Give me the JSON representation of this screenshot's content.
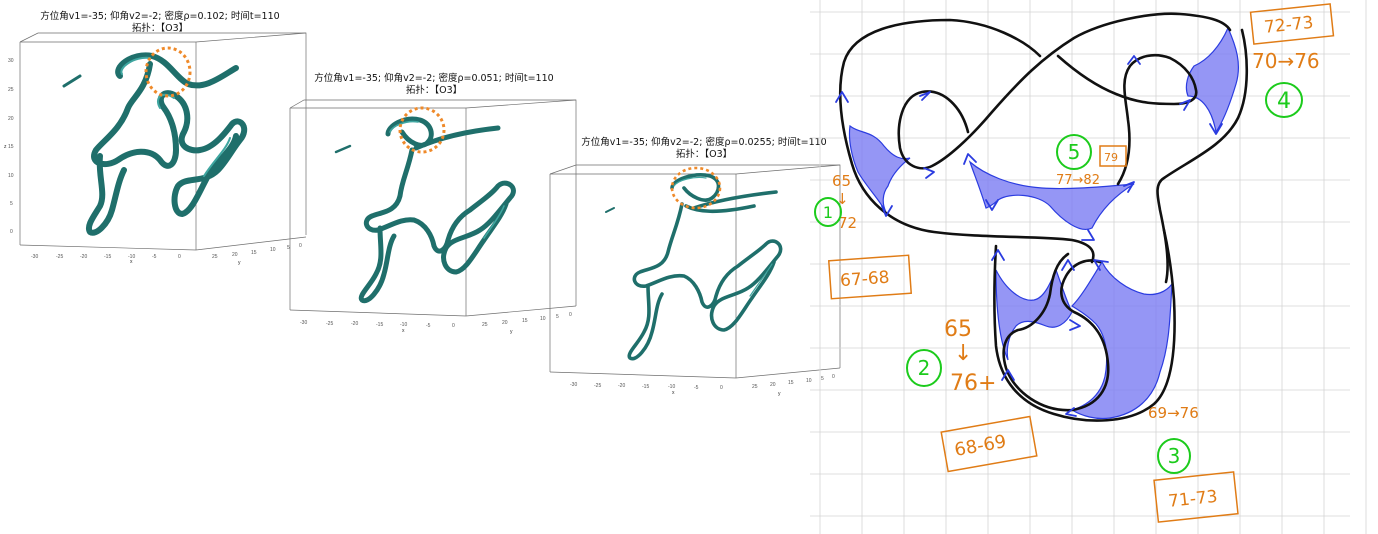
{
  "panels": [
    {
      "id": "rho-0102",
      "title_line1": "方位角v1=-35; 仰角v2=-2; 密度ρ=0.102; 时间t=110",
      "title_line2": "拓扑：【O3】",
      "x_label": "x",
      "y_label": "y",
      "z_label": "z",
      "x_ticks": [
        "-30",
        "-25",
        "-20",
        "-15",
        "-10",
        "-5",
        "0"
      ],
      "y_ticks": [
        "25",
        "20",
        "15",
        "10",
        "5",
        "0"
      ],
      "z_ticks": [
        "30",
        "25",
        "20",
        "15",
        "10",
        "5",
        "0"
      ]
    },
    {
      "id": "rho-0051",
      "title_line1": "方位角v1=-35; 仰角v2=-2; 密度ρ=0.051; 时间t=110",
      "title_line2": "拓扑：【O3】",
      "x_label": "x",
      "y_label": "y",
      "z_label": "z",
      "x_ticks": [
        "-30",
        "-25",
        "-20",
        "-15",
        "-10",
        "-5",
        "0"
      ],
      "y_ticks": [
        "25",
        "20",
        "15",
        "10",
        "5",
        "0"
      ],
      "z_ticks": [
        "30",
        "25",
        "20",
        "15",
        "10",
        "5",
        "0"
      ]
    },
    {
      "id": "rho-00255",
      "title_line1": "方位角v1=-35; 仰角v2=-2; 密度ρ=0.0255; 时间t=110",
      "title_line2": "拓扑：【O3】",
      "x_label": "x",
      "y_label": "y",
      "z_label": "z",
      "x_ticks": [
        "-30",
        "-25",
        "-20",
        "-15",
        "-10",
        "-5",
        "0"
      ],
      "y_ticks": [
        "25",
        "20",
        "15",
        "10",
        "5",
        "0"
      ],
      "z_ticks": [
        "30",
        "25",
        "20",
        "15",
        "10",
        "5",
        "0"
      ]
    }
  ],
  "sketch": {
    "regions": [
      {
        "id": "1",
        "circle": "1",
        "range": "65\n↓\n72",
        "box": "67-68"
      },
      {
        "id": "2",
        "circle": "2",
        "range": "65\n↓\n76+",
        "box": "68-69"
      },
      {
        "id": "3",
        "circle": "3",
        "range": "69→76",
        "box": "71-73"
      },
      {
        "id": "4",
        "circle": "4",
        "range": "70→76",
        "box": "72-73"
      },
      {
        "id": "5",
        "circle": "5",
        "range": "77→82",
        "box": "79"
      }
    ]
  },
  "colors": {
    "tube": "#1f6f6b",
    "tube_highlight": "#3fa6a0",
    "marker": "#ef8a2a",
    "ink": "#111111",
    "arrow": "#2b3ce0",
    "shade": "#7a7cf2",
    "annot_orange": "#e07c16",
    "annot_green": "#1ccb1c",
    "grid": "#d4d4d4"
  }
}
